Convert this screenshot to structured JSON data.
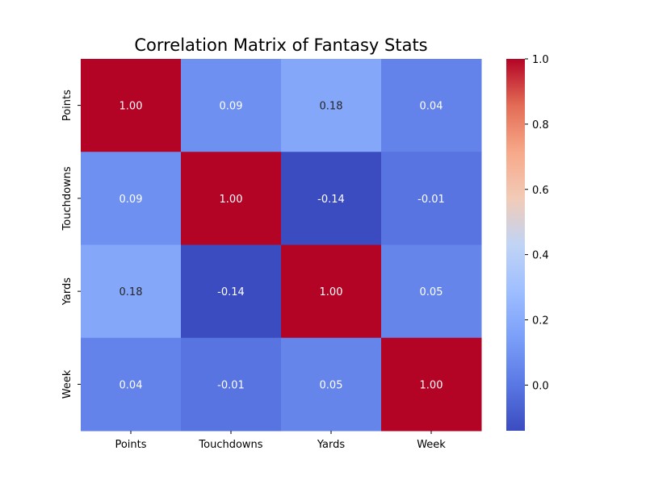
{
  "chart_data": {
    "type": "heatmap",
    "title": "Correlation Matrix of Fantasy Stats",
    "row_labels": [
      "Points",
      "Touchdowns",
      "Yards",
      "Week"
    ],
    "col_labels": [
      "Points",
      "Touchdowns",
      "Yards",
      "Week"
    ],
    "values": [
      [
        1.0,
        0.09,
        0.18,
        0.04
      ],
      [
        0.09,
        1.0,
        -0.14,
        -0.01
      ],
      [
        0.18,
        -0.14,
        1.0,
        0.05
      ],
      [
        0.04,
        -0.01,
        0.05,
        1.0
      ]
    ],
    "cell_labels": [
      [
        "1.00",
        "0.09",
        "0.18",
        "0.04"
      ],
      [
        "0.09",
        "1.00",
        "-0.14",
        "-0.01"
      ],
      [
        "0.18",
        "-0.14",
        "1.00",
        "0.05"
      ],
      [
        "0.04",
        "-0.01",
        "0.05",
        "1.00"
      ]
    ],
    "colormap": "coolwarm",
    "vmin": -0.14,
    "vmax": 1.0,
    "colorbar_ticks": [
      -0.0,
      0.2,
      0.4,
      0.6,
      0.8,
      1.0
    ],
    "colorbar_tick_labels": [
      "0.0",
      "0.2",
      "0.4",
      "0.6",
      "0.8",
      "1.0"
    ]
  }
}
